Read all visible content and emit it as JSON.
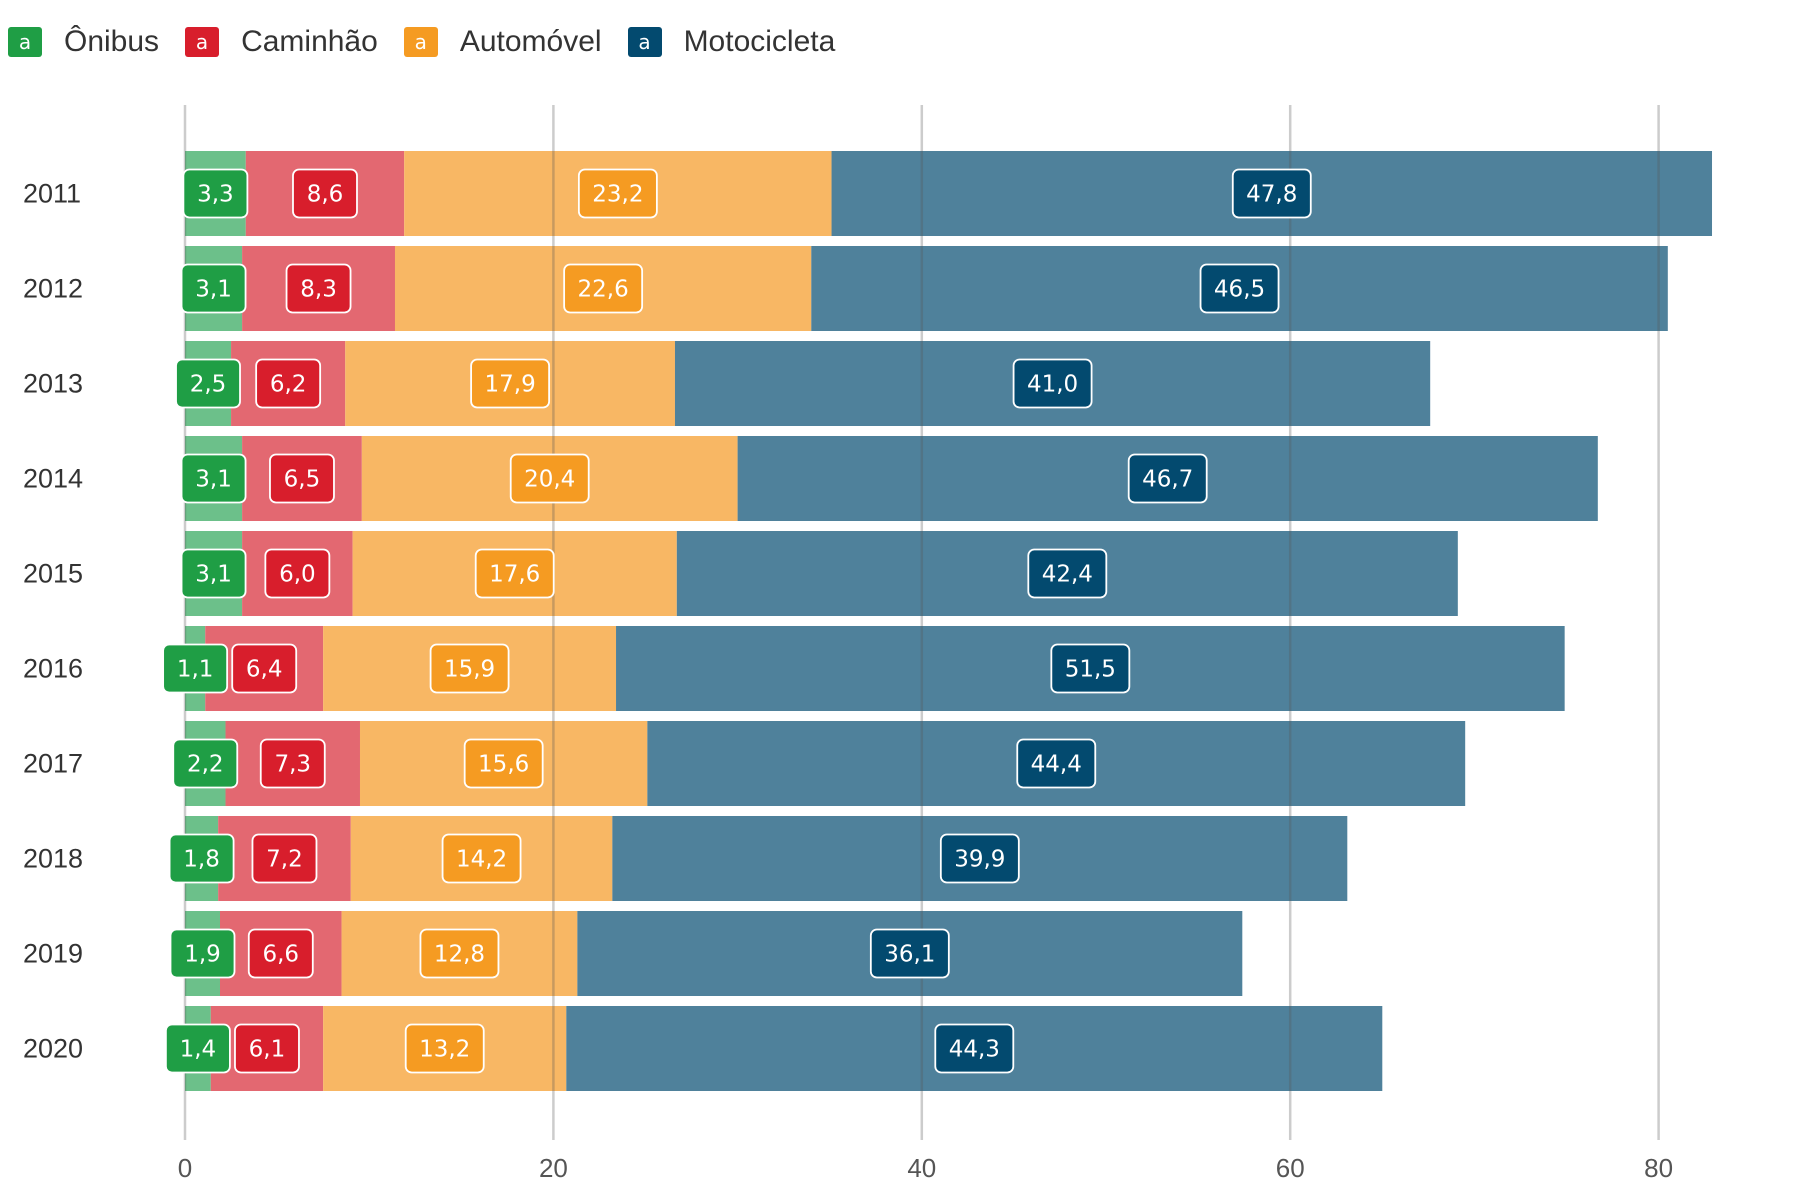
{
  "chart_data": {
    "type": "bar",
    "orientation": "horizontal",
    "stacked": true,
    "categories": [
      "2011",
      "2012",
      "2013",
      "2014",
      "2015",
      "2016",
      "2017",
      "2018",
      "2019",
      "2020"
    ],
    "series": [
      {
        "name": "Ônibus",
        "color": "#1f9e45",
        "fill": "#6cc08a",
        "values": [
          3.3,
          3.1,
          2.5,
          3.1,
          3.1,
          1.1,
          2.2,
          1.8,
          1.9,
          1.4
        ],
        "labels": [
          "3,3",
          "3,1",
          "2,5",
          "3,1",
          "3,1",
          "1,1",
          "2,2",
          "1,8",
          "1,9",
          "1,4"
        ]
      },
      {
        "name": "Caminhão",
        "color": "#d81e2c",
        "fill": "#e36871",
        "values": [
          8.6,
          8.3,
          6.2,
          6.5,
          6.0,
          6.4,
          7.3,
          7.2,
          6.6,
          6.1
        ],
        "labels": [
          "8,6",
          "8,3",
          "6,2",
          "6,5",
          "6,0",
          "6,4",
          "7,3",
          "7,2",
          "6,6",
          "6,1"
        ]
      },
      {
        "name": "Automóvel",
        "color": "#f59b22",
        "fill": "#f8b764",
        "values": [
          23.2,
          22.6,
          17.9,
          20.4,
          17.6,
          15.9,
          15.6,
          14.2,
          12.8,
          13.2
        ],
        "labels": [
          "23,2",
          "22,6",
          "17,9",
          "20,4",
          "17,6",
          "15,9",
          "15,6",
          "14,2",
          "12,8",
          "13,2"
        ]
      },
      {
        "name": "Motocicleta",
        "color": "#034a6f",
        "fill": "#4f819b",
        "values": [
          47.8,
          46.5,
          41.0,
          46.7,
          42.4,
          51.5,
          44.4,
          39.9,
          36.1,
          44.3
        ],
        "labels": [
          "47,8",
          "46,5",
          "41,0",
          "46,7",
          "42,4",
          "51,5",
          "44,4",
          "39,9",
          "36,1",
          "44,3"
        ]
      }
    ],
    "xlim": [
      0,
      85
    ],
    "xticks": [
      0,
      20,
      40,
      60,
      80
    ],
    "grid": true,
    "legend_position": "top-left",
    "legend_key_glyph": "a"
  }
}
